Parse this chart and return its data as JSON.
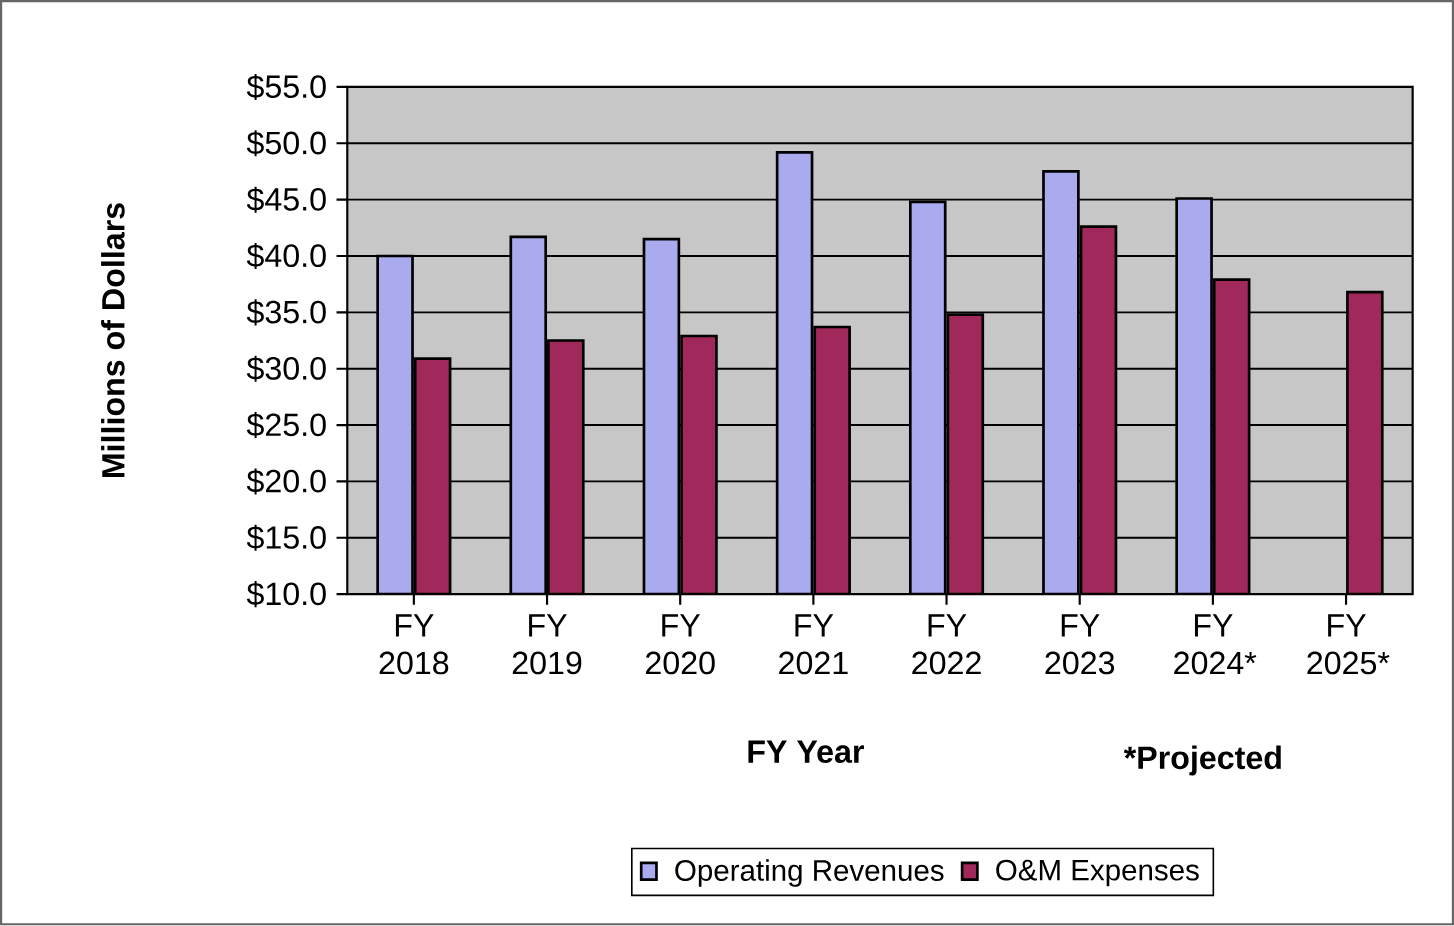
{
  "chart_data": {
    "type": "bar",
    "xlabel": "FY Year",
    "ylabel": "Millions of Dollars",
    "categories": [
      "FY 2018",
      "FY 2019",
      "FY 2020",
      "FY 2021",
      "FY 2022",
      "FY 2023",
      "FY 2024*",
      "FY 2025*"
    ],
    "series": [
      {
        "name": "Operating Revenues",
        "color": "#aaaaee",
        "values": [
          40.0,
          41.7,
          41.5,
          49.2,
          44.8,
          47.5,
          45.1,
          null
        ]
      },
      {
        "name": "O&M Expenses",
        "color": "#a0285a",
        "values": [
          30.9,
          32.5,
          32.9,
          33.7,
          34.8,
          42.6,
          37.9,
          36.8
        ]
      }
    ],
    "ylim": [
      10,
      55
    ],
    "yticks": [
      {
        "value": 10,
        "label": "$10.0"
      },
      {
        "value": 15,
        "label": "$15.0"
      },
      {
        "value": 20,
        "label": "$20.0"
      },
      {
        "value": 25,
        "label": "$25.0"
      },
      {
        "value": 30,
        "label": "$30.0"
      },
      {
        "value": 35,
        "label": "$35.0"
      },
      {
        "value": 40,
        "label": "$40.0"
      },
      {
        "value": 45,
        "label": "$45.0"
      },
      {
        "value": 50,
        "label": "$50.0"
      },
      {
        "value": 55,
        "label": "$55.0"
      }
    ],
    "grid": "y",
    "legend": "bottom",
    "annotations": [
      "*Projected"
    ]
  }
}
